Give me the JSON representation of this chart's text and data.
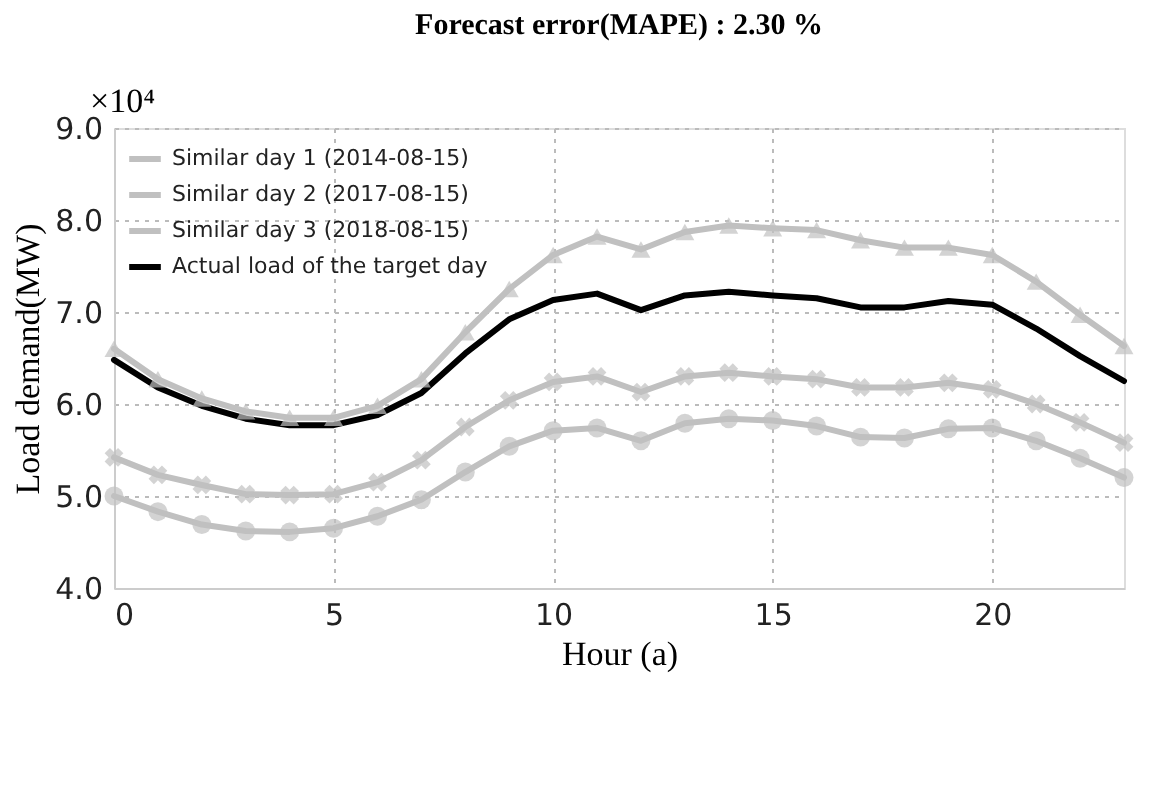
{
  "chart_data": {
    "type": "line",
    "title": "Forecast error(MAPE) : 2.30 %",
    "xlabel": "Hour (a)",
    "ylabel": "Load demand(MW)",
    "annotations": [
      "×10⁴"
    ],
    "x": [
      0,
      1,
      2,
      3,
      4,
      5,
      6,
      7,
      8,
      9,
      10,
      11,
      12,
      13,
      14,
      15,
      16,
      17,
      18,
      19,
      20,
      21,
      22,
      23
    ],
    "series": [
      {
        "name": "Similar day 1 (2014-08-15)",
        "color": "#c0c0c0",
        "marker": "circle",
        "values": [
          5.0,
          4.83,
          4.69,
          4.62,
          4.61,
          4.65,
          4.78,
          4.96,
          5.26,
          5.54,
          5.71,
          5.74,
          5.6,
          5.79,
          5.84,
          5.82,
          5.76,
          5.64,
          5.63,
          5.73,
          5.74,
          5.6,
          5.41,
          5.2
        ]
      },
      {
        "name": "Similar day 2 (2017-08-15)",
        "color": "#c0c0c0",
        "marker": "cross",
        "values": [
          5.42,
          5.23,
          5.12,
          5.02,
          5.01,
          5.02,
          5.15,
          5.39,
          5.75,
          6.04,
          6.24,
          6.3,
          6.13,
          6.3,
          6.34,
          6.3,
          6.27,
          6.18,
          6.18,
          6.23,
          6.16,
          6.0,
          5.8,
          5.58
        ]
      },
      {
        "name": "Similar day 3 (2018-08-15)",
        "color": "#c0c0c0",
        "marker": "triangle",
        "values": [
          6.6,
          6.27,
          6.06,
          5.92,
          5.85,
          5.85,
          5.98,
          6.27,
          6.78,
          7.25,
          7.62,
          7.82,
          7.68,
          7.87,
          7.94,
          7.91,
          7.89,
          7.78,
          7.7,
          7.7,
          7.62,
          7.33,
          6.97,
          6.63
        ]
      },
      {
        "name": "Actual load of the target day",
        "color": "#000000",
        "marker": "none",
        "values": [
          6.48,
          6.18,
          5.98,
          5.84,
          5.77,
          5.77,
          5.88,
          6.12,
          6.55,
          6.92,
          7.13,
          7.2,
          7.02,
          7.18,
          7.22,
          7.18,
          7.15,
          7.05,
          7.05,
          7.12,
          7.08,
          6.82,
          6.52,
          6.25
        ]
      }
    ],
    "xlim": [
      0,
      23
    ],
    "xticks": [
      0,
      5,
      10,
      15,
      20
    ],
    "ylim": [
      4.0,
      9.0
    ],
    "yticks": [
      {
        "value": 4,
        "label": "4.0"
      },
      {
        "value": 5,
        "label": "5.0"
      },
      {
        "value": 6,
        "label": "6.0"
      },
      {
        "value": 7,
        "label": "7.0"
      },
      {
        "value": 8,
        "label": "8.0"
      },
      {
        "value": 9,
        "label": "9.0"
      }
    ],
    "grid": true,
    "legend": "top left"
  }
}
